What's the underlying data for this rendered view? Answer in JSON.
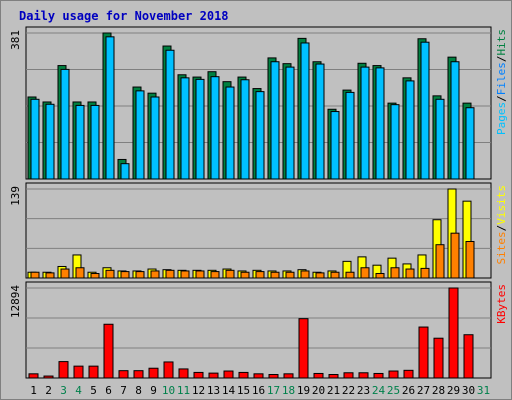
{
  "title": "Daily usage for November 2018",
  "colors": {
    "background": "#c0c0c0",
    "plot_bg": "#c0c0c0",
    "hits": "#008040",
    "files": "#00c0ff",
    "pages": "#00c0ff",
    "visits": "#ffff00",
    "sites": "#ff8000",
    "kbytes": "#ff0000",
    "weekend_label": "#00804b",
    "weekday_label": "#000000",
    "title": "#0000c0"
  },
  "chart_data": [
    {
      "type": "bar",
      "name": "hits-files-pages",
      "ymax_label": "381",
      "ymax": 381,
      "legend": [
        {
          "label": "Pages",
          "color": "#00c0ff"
        },
        {
          "label": "/",
          "color": "#000000"
        },
        {
          "label": "Files",
          "color": "#0080ff"
        },
        {
          "label": "/",
          "color": "#000000"
        },
        {
          "label": "Hits",
          "color": "#008040"
        }
      ],
      "categories": [
        "1",
        "2",
        "3",
        "4",
        "5",
        "6",
        "7",
        "8",
        "9",
        "10",
        "11",
        "12",
        "13",
        "14",
        "15",
        "16",
        "17",
        "18",
        "19",
        "20",
        "21",
        "22",
        "23",
        "24",
        "25",
        "26",
        "27",
        "28",
        "29",
        "30",
        "31"
      ],
      "series": [
        {
          "name": "Hits",
          "values": [
            214,
            201,
            296,
            201,
            201,
            381,
            51,
            240,
            224,
            347,
            272,
            266,
            280,
            254,
            266,
            236,
            316,
            301,
            367,
            306,
            182,
            232,
            302,
            296,
            198,
            264,
            366,
            217,
            318,
            198,
            0
          ]
        },
        {
          "name": "Files",
          "values": [
            208,
            195,
            286,
            192,
            192,
            371,
            40,
            230,
            214,
            336,
            264,
            260,
            267,
            240,
            259,
            228,
            306,
            292,
            355,
            300,
            176,
            226,
            292,
            290,
            194,
            256,
            357,
            208,
            306,
            186,
            0
          ]
        }
      ]
    },
    {
      "type": "bar",
      "name": "visits-sites",
      "ymax_label": "139",
      "ymax": 139,
      "legend": [
        {
          "label": "Sites",
          "color": "#ff8000"
        },
        {
          "label": "/",
          "color": "#000000"
        },
        {
          "label": "Visits",
          "color": "#ffff00"
        }
      ],
      "categories": [
        "1",
        "2",
        "3",
        "4",
        "5",
        "6",
        "7",
        "8",
        "9",
        "10",
        "11",
        "12",
        "13",
        "14",
        "15",
        "16",
        "17",
        "18",
        "19",
        "20",
        "21",
        "22",
        "23",
        "24",
        "25",
        "26",
        "27",
        "28",
        "29",
        "30",
        "31"
      ],
      "series": [
        {
          "name": "Visits",
          "values": [
            9,
            9,
            18,
            36,
            9,
            16,
            11,
            11,
            14,
            13,
            12,
            12,
            12,
            14,
            11,
            12,
            11,
            11,
            13,
            9,
            11,
            26,
            33,
            20,
            31,
            22,
            36,
            91,
            139,
            120,
            0
          ]
        },
        {
          "name": "Sites",
          "values": [
            9,
            8,
            14,
            16,
            7,
            12,
            10,
            10,
            11,
            12,
            11,
            11,
            10,
            12,
            9,
            10,
            9,
            9,
            11,
            8,
            9,
            9,
            16,
            7,
            16,
            14,
            15,
            52,
            70,
            57,
            0
          ]
        }
      ]
    },
    {
      "type": "bar",
      "name": "kbytes",
      "ymax_label": "12894",
      "ymax": 12894,
      "legend": [
        {
          "label": "KBytes",
          "color": "#ff0000"
        }
      ],
      "categories": [
        "1",
        "2",
        "3",
        "4",
        "5",
        "6",
        "7",
        "8",
        "9",
        "10",
        "11",
        "12",
        "13",
        "14",
        "15",
        "16",
        "17",
        "18",
        "19",
        "20",
        "21",
        "22",
        "23",
        "24",
        "25",
        "26",
        "27",
        "28",
        "29",
        "30",
        "31"
      ],
      "series": [
        {
          "name": "KBytes",
          "values": [
            600,
            280,
            2350,
            1700,
            1700,
            7700,
            1050,
            1050,
            1400,
            2300,
            1300,
            800,
            700,
            1000,
            800,
            600,
            500,
            600,
            8500,
            650,
            500,
            750,
            750,
            650,
            1000,
            1100,
            7300,
            5700,
            12894,
            6200,
            0
          ]
        }
      ]
    }
  ]
}
